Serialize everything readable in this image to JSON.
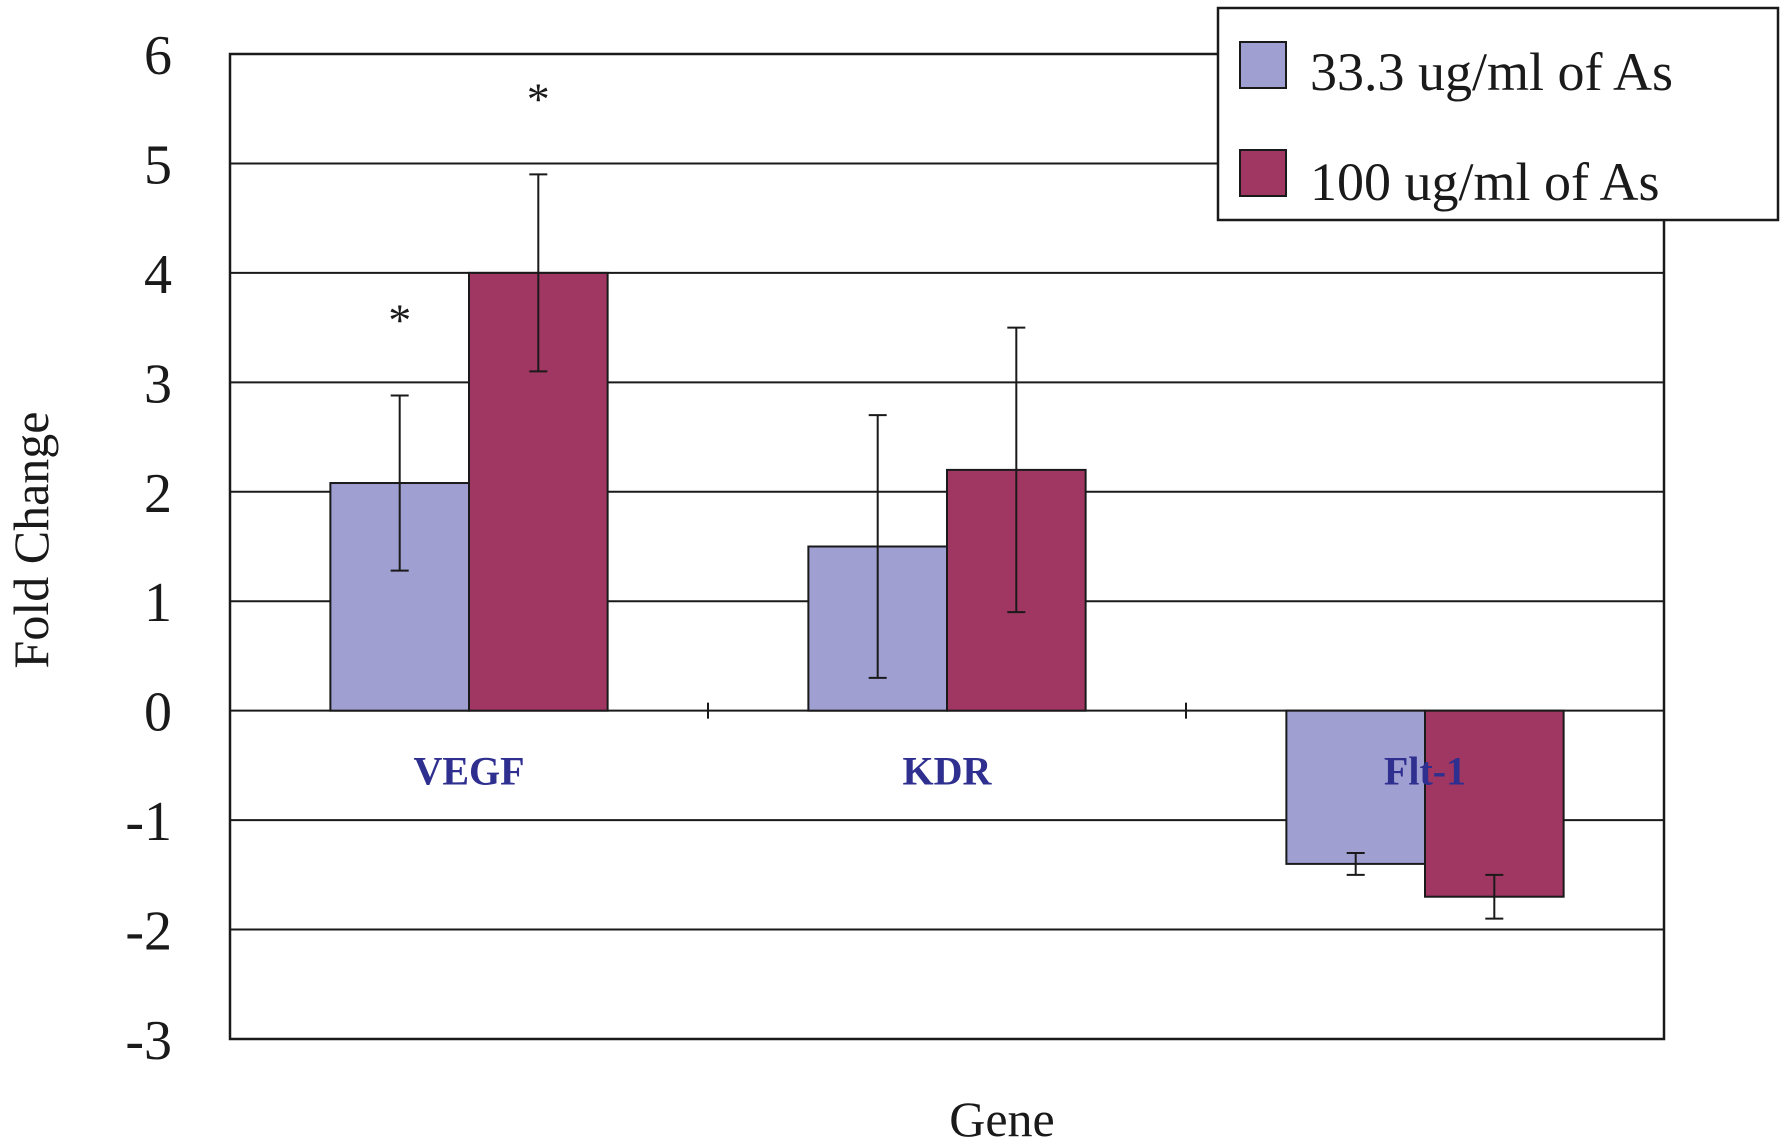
{
  "chart_data": {
    "type": "bar",
    "categories": [
      "VEGF",
      "KDR",
      "Flt-1"
    ],
    "xlabel": "Gene",
    "ylabel": "Fold Change",
    "ylim": [
      -3,
      6
    ],
    "yticks": [
      6,
      5,
      4,
      3,
      2,
      1,
      0,
      -1,
      -2,
      -3
    ],
    "ytick_labels": [
      "6",
      "5",
      "4",
      "3",
      "2",
      "1",
      "0",
      "-1",
      "-2",
      "-3"
    ],
    "grid": true,
    "legend_position": "top-right",
    "series": [
      {
        "name": "33.3 ug/ml of As",
        "color": "#a09fd2",
        "values": [
          2.08,
          1.5,
          -1.4
        ],
        "errors": [
          0.8,
          1.2,
          0.1
        ],
        "markers": [
          "*",
          "",
          ""
        ]
      },
      {
        "name": "100 ug/ml of As",
        "color": "#a03762",
        "values": [
          4.0,
          2.2,
          -1.7
        ],
        "errors": [
          0.9,
          1.3,
          0.2
        ],
        "markers": [
          "*",
          "",
          ""
        ]
      }
    ],
    "category_label_color": "#2e2f8f"
  }
}
